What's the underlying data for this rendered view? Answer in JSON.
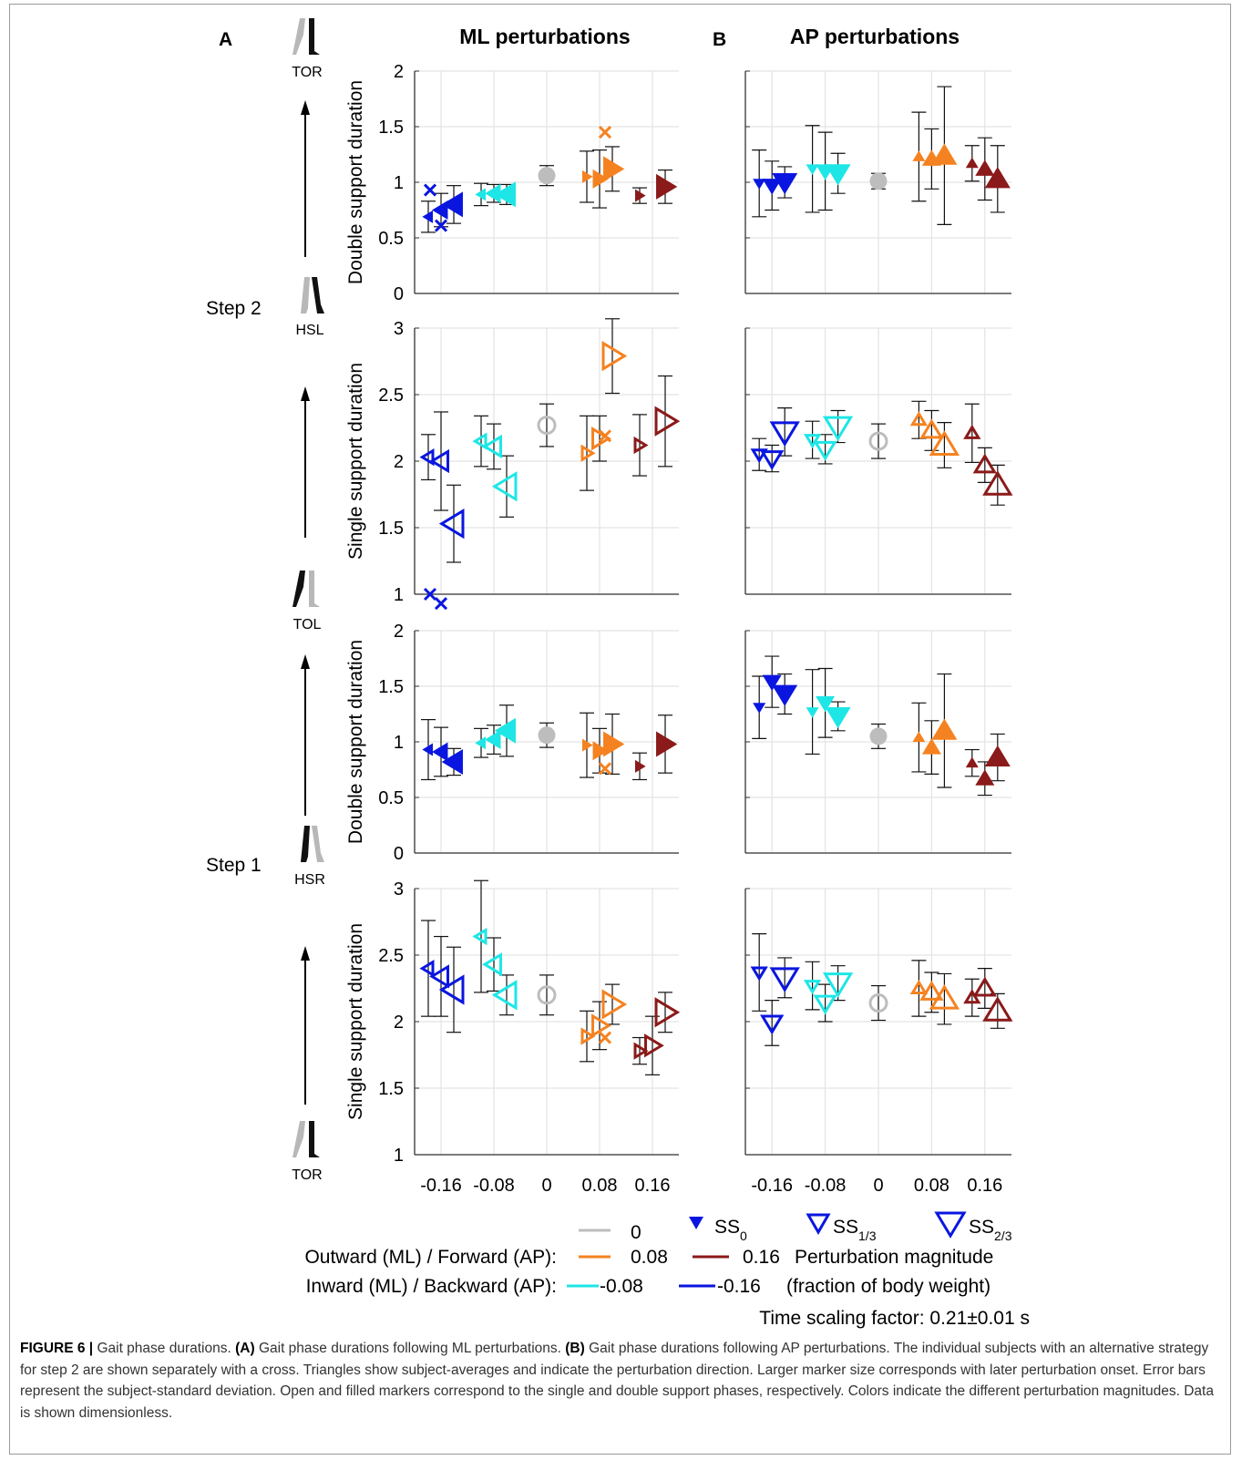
{
  "panels": {
    "A": {
      "letter": "A",
      "title": "ML perturbations"
    },
    "B": {
      "letter": "B",
      "title": "AP perturbations"
    }
  },
  "row_labels": [
    "Double support duration",
    "Single support duration",
    "Double support duration",
    "Single support duration"
  ],
  "events": {
    "tor_top": "TOR",
    "hsl": "HSL",
    "tol": "TOL",
    "hsr": "HSR",
    "tor_bottom": "TOR"
  },
  "steps": {
    "step2": "Step 2",
    "step1": "Step 1"
  },
  "x_ticks": [
    "-0.16",
    "-0.08",
    "0",
    "0.08",
    "0.16"
  ],
  "y_ticks_ds": [
    "0",
    "0.5",
    "1",
    "1.5",
    "2"
  ],
  "y_ticks_ss": [
    "1",
    "1.5",
    "2",
    "2.5",
    "3"
  ],
  "legend": {
    "zero_label": "0",
    "ss0": "SS",
    "ss0_sub": "0",
    "ss13": "SS",
    "ss13_sub": "1/3",
    "ss23": "SS",
    "ss23_sub": "2/3",
    "outward_label": "Outward (ML) / Forward (AP):",
    "inward_label": "Inward (ML) / Backward (AP):",
    "v008": "0.08",
    "v016": "0.16",
    "vm008": "-0.08",
    "vm016": "-0.16",
    "magnitude_line1": "Perturbation magnitude",
    "magnitude_line2": "(fraction of body weight)",
    "time_scaling": "Time scaling factor: 0.21±0.01 s"
  },
  "caption": {
    "fig_label": "FIGURE 6 |",
    "text1": " Gait phase durations. ",
    "a_label": "(A)",
    "text2": " Gait phase durations following ML perturbations. ",
    "b_label": "(B)",
    "text3": " Gait phase durations following AP perturbations. The individual subjects with an alternative strategy for step 2 are shown separately with a cross. Triangles show subject-averages and indicate the perturbation direction. Larger marker size corresponds with later perturbation onset. Error bars represent the subject-standard deviation. Open and filled markers correspond to the single and double support phases, respectively. Colors indicate the different perturbation magnitudes. Data is shown dimensionless."
  },
  "colors": {
    "m016": "#0a16e0",
    "m008": "#1ee6e6",
    "zero": "#bdbdbd",
    "p008": "#f58220",
    "p016": "#8b1a1a"
  },
  "chart_data": [
    {
      "panel": "A",
      "type": "scatter",
      "title": "ML perturbations",
      "ylabel": "Double support duration",
      "ylim": [
        0,
        2
      ],
      "grid": true,
      "marker_direction": {
        "negative": "left",
        "positive": "right"
      },
      "points": [
        {
          "x": -0.16,
          "ss": "0",
          "y": 0.69,
          "err": 0.14
        },
        {
          "x": -0.16,
          "ss": "1/3",
          "y": 0.75,
          "err": 0.15
        },
        {
          "x": -0.16,
          "ss": "2/3",
          "y": 0.8,
          "err": 0.17
        },
        {
          "x": -0.08,
          "ss": "0",
          "y": 0.89,
          "err": 0.1
        },
        {
          "x": -0.08,
          "ss": "1/3",
          "y": 0.9,
          "err": 0.08
        },
        {
          "x": -0.08,
          "ss": "2/3",
          "y": 0.89,
          "err": 0.09
        },
        {
          "x": 0,
          "ss": "0",
          "y": 1.06,
          "err": 0.09
        },
        {
          "x": 0.08,
          "ss": "0",
          "y": 1.05,
          "err": 0.23
        },
        {
          "x": 0.08,
          "ss": "1/3",
          "y": 1.03,
          "err": 0.26
        },
        {
          "x": 0.08,
          "ss": "2/3",
          "y": 1.12,
          "err": 0.2
        },
        {
          "x": 0.16,
          "ss": "0",
          "y": 0.88,
          "err": 0.07
        },
        {
          "x": 0.16,
          "ss": "2/3",
          "y": 0.96,
          "err": 0.15
        }
      ],
      "crosses": [
        {
          "x": -0.16,
          "y": 0.93
        },
        {
          "x": -0.16,
          "y": 0.61
        },
        {
          "x": 0.08,
          "y": 1.45
        }
      ]
    },
    {
      "panel": "B",
      "type": "scatter",
      "title": "AP perturbations",
      "ylabel": "Double support duration",
      "ylim": [
        0,
        2
      ],
      "grid": true,
      "marker_direction": {
        "negative": "down",
        "positive": "up"
      },
      "points": [
        {
          "x": -0.16,
          "ss": "0",
          "y": 0.99,
          "err": 0.3
        },
        {
          "x": -0.16,
          "ss": "1/3",
          "y": 0.97,
          "err": 0.22
        },
        {
          "x": -0.16,
          "ss": "2/3",
          "y": 1.0,
          "err": 0.14
        },
        {
          "x": -0.08,
          "ss": "0",
          "y": 1.12,
          "err": 0.39
        },
        {
          "x": -0.08,
          "ss": "1/3",
          "y": 1.1,
          "err": 0.35
        },
        {
          "x": -0.08,
          "ss": "2/3",
          "y": 1.08,
          "err": 0.18
        },
        {
          "x": 0,
          "ss": "0",
          "y": 1.01,
          "err": 0.07
        },
        {
          "x": 0.08,
          "ss": "0",
          "y": 1.23,
          "err": 0.4
        },
        {
          "x": 0.08,
          "ss": "1/3",
          "y": 1.21,
          "err": 0.27
        },
        {
          "x": 0.08,
          "ss": "2/3",
          "y": 1.24,
          "err": 0.62
        },
        {
          "x": 0.16,
          "ss": "0",
          "y": 1.17,
          "err": 0.16
        },
        {
          "x": 0.16,
          "ss": "1/3",
          "y": 1.12,
          "err": 0.28
        },
        {
          "x": 0.16,
          "ss": "2/3",
          "y": 1.03,
          "err": 0.3
        }
      ],
      "crosses": []
    },
    {
      "panel": "A",
      "type": "scatter",
      "ylabel": "Single support duration",
      "ylim": [
        1,
        3
      ],
      "grid": true,
      "marker_direction": {
        "negative": "left",
        "positive": "right"
      },
      "points": [
        {
          "x": -0.16,
          "ss": "0",
          "y": 2.03,
          "err": 0.17
        },
        {
          "x": -0.16,
          "ss": "1/3",
          "y": 2.0,
          "err": 0.37
        },
        {
          "x": -0.16,
          "ss": "2/3",
          "y": 1.53,
          "err": 0.29
        },
        {
          "x": -0.08,
          "ss": "0",
          "y": 2.15,
          "err": 0.19
        },
        {
          "x": -0.08,
          "ss": "1/3",
          "y": 2.11,
          "err": 0.17
        },
        {
          "x": -0.08,
          "ss": "2/3",
          "y": 1.81,
          "err": 0.23
        },
        {
          "x": 0,
          "ss": "0",
          "y": 2.27,
          "err": 0.16
        },
        {
          "x": 0.08,
          "ss": "0",
          "y": 2.06,
          "err": 0.28
        },
        {
          "x": 0.08,
          "ss": "1/3",
          "y": 2.17,
          "err": 0.17
        },
        {
          "x": 0.08,
          "ss": "2/3",
          "y": 2.79,
          "err": 0.28
        },
        {
          "x": 0.16,
          "ss": "0",
          "y": 2.12,
          "err": 0.23
        },
        {
          "x": 0.16,
          "ss": "2/3",
          "y": 2.3,
          "err": 0.34
        }
      ],
      "crosses": [
        {
          "x": -0.16,
          "y": 1.0
        },
        {
          "x": -0.16,
          "y": 0.93
        },
        {
          "x": 0.08,
          "y": 2.19
        }
      ]
    },
    {
      "panel": "B",
      "type": "scatter",
      "ylabel": "Single support duration",
      "ylim": [
        1,
        3
      ],
      "grid": true,
      "marker_direction": {
        "negative": "down",
        "positive": "up"
      },
      "points": [
        {
          "x": -0.16,
          "ss": "0",
          "y": 2.05,
          "err": 0.12
        },
        {
          "x": -0.16,
          "ss": "1/3",
          "y": 2.02,
          "err": 0.1
        },
        {
          "x": -0.16,
          "ss": "2/3",
          "y": 2.22,
          "err": 0.18
        },
        {
          "x": -0.08,
          "ss": "0",
          "y": 2.16,
          "err": 0.14
        },
        {
          "x": -0.08,
          "ss": "1/3",
          "y": 2.09,
          "err": 0.11
        },
        {
          "x": -0.08,
          "ss": "2/3",
          "y": 2.26,
          "err": 0.12
        },
        {
          "x": 0,
          "ss": "0",
          "y": 2.15,
          "err": 0.13
        },
        {
          "x": 0.08,
          "ss": "0",
          "y": 2.31,
          "err": 0.14
        },
        {
          "x": 0.08,
          "ss": "1/3",
          "y": 2.23,
          "err": 0.15
        },
        {
          "x": 0.08,
          "ss": "2/3",
          "y": 2.12,
          "err": 0.17
        },
        {
          "x": 0.16,
          "ss": "0",
          "y": 2.21,
          "err": 0.22
        },
        {
          "x": 0.16,
          "ss": "1/3",
          "y": 1.97,
          "err": 0.13
        },
        {
          "x": 0.16,
          "ss": "2/3",
          "y": 1.82,
          "err": 0.15
        }
      ],
      "crosses": []
    },
    {
      "panel": "A",
      "type": "scatter",
      "ylabel": "Double support duration",
      "ylim": [
        0,
        2
      ],
      "grid": true,
      "marker_direction": {
        "negative": "left",
        "positive": "right"
      },
      "points": [
        {
          "x": -0.16,
          "ss": "0",
          "y": 0.93,
          "err": 0.27
        },
        {
          "x": -0.16,
          "ss": "1/3",
          "y": 0.91,
          "err": 0.22
        },
        {
          "x": -0.16,
          "ss": "2/3",
          "y": 0.82,
          "err": 0.12
        },
        {
          "x": -0.08,
          "ss": "0",
          "y": 0.99,
          "err": 0.13
        },
        {
          "x": -0.08,
          "ss": "1/3",
          "y": 1.02,
          "err": 0.13
        },
        {
          "x": -0.08,
          "ss": "2/3",
          "y": 1.1,
          "err": 0.23
        },
        {
          "x": 0,
          "ss": "0",
          "y": 1.06,
          "err": 0.11
        },
        {
          "x": 0.08,
          "ss": "0",
          "y": 0.97,
          "err": 0.29
        },
        {
          "x": 0.08,
          "ss": "1/3",
          "y": 0.92,
          "err": 0.2
        },
        {
          "x": 0.08,
          "ss": "2/3",
          "y": 0.98,
          "err": 0.27
        },
        {
          "x": 0.16,
          "ss": "0",
          "y": 0.78,
          "err": 0.12
        },
        {
          "x": 0.16,
          "ss": "2/3",
          "y": 0.98,
          "err": 0.26
        }
      ],
      "crosses": [
        {
          "x": 0.08,
          "y": 0.76
        }
      ]
    },
    {
      "panel": "B",
      "type": "scatter",
      "ylabel": "Double support duration",
      "ylim": [
        0,
        2
      ],
      "grid": true,
      "marker_direction": {
        "negative": "down",
        "positive": "up"
      },
      "points": [
        {
          "x": -0.16,
          "ss": "0",
          "y": 1.31,
          "err": 0.28
        },
        {
          "x": -0.16,
          "ss": "1/3",
          "y": 1.54,
          "err": 0.23
        },
        {
          "x": -0.16,
          "ss": "2/3",
          "y": 1.43,
          "err": 0.18
        },
        {
          "x": -0.08,
          "ss": "0",
          "y": 1.27,
          "err": 0.38
        },
        {
          "x": -0.08,
          "ss": "1/3",
          "y": 1.35,
          "err": 0.31
        },
        {
          "x": -0.08,
          "ss": "2/3",
          "y": 1.23,
          "err": 0.13
        },
        {
          "x": 0,
          "ss": "0",
          "y": 1.05,
          "err": 0.11
        },
        {
          "x": 0.08,
          "ss": "0",
          "y": 1.04,
          "err": 0.31
        },
        {
          "x": 0.08,
          "ss": "1/3",
          "y": 0.95,
          "err": 0.24
        },
        {
          "x": 0.08,
          "ss": "2/3",
          "y": 1.1,
          "err": 0.51
        },
        {
          "x": 0.16,
          "ss": "0",
          "y": 0.81,
          "err": 0.12
        },
        {
          "x": 0.16,
          "ss": "1/3",
          "y": 0.67,
          "err": 0.15
        },
        {
          "x": 0.16,
          "ss": "2/3",
          "y": 0.86,
          "err": 0.21
        }
      ],
      "crosses": []
    },
    {
      "panel": "A",
      "type": "scatter",
      "ylabel": "Single support duration",
      "ylim": [
        1,
        3
      ],
      "grid": true,
      "marker_direction": {
        "negative": "left",
        "positive": "right"
      },
      "points": [
        {
          "x": -0.16,
          "ss": "0",
          "y": 2.4,
          "err": 0.36
        },
        {
          "x": -0.16,
          "ss": "1/3",
          "y": 2.34,
          "err": 0.3
        },
        {
          "x": -0.16,
          "ss": "2/3",
          "y": 2.24,
          "err": 0.32
        },
        {
          "x": -0.08,
          "ss": "0",
          "y": 2.64,
          "err": 0.42
        },
        {
          "x": -0.08,
          "ss": "1/3",
          "y": 2.43,
          "err": 0.2
        },
        {
          "x": -0.08,
          "ss": "2/3",
          "y": 2.2,
          "err": 0.15
        },
        {
          "x": 0,
          "ss": "0",
          "y": 2.2,
          "err": 0.15
        },
        {
          "x": 0.08,
          "ss": "0",
          "y": 1.89,
          "err": 0.19
        },
        {
          "x": 0.08,
          "ss": "1/3",
          "y": 1.97,
          "err": 0.18
        },
        {
          "x": 0.08,
          "ss": "2/3",
          "y": 2.13,
          "err": 0.15
        },
        {
          "x": 0.16,
          "ss": "0",
          "y": 1.78,
          "err": 0.1
        },
        {
          "x": 0.16,
          "ss": "1/3",
          "y": 1.82,
          "err": 0.22
        },
        {
          "x": 0.16,
          "ss": "2/3",
          "y": 2.07,
          "err": 0.15
        }
      ],
      "crosses": [
        {
          "x": 0.08,
          "y": 1.88
        }
      ]
    },
    {
      "panel": "B",
      "type": "scatter",
      "ylabel": "Single support duration",
      "ylim": [
        1,
        3
      ],
      "grid": true,
      "marker_direction": {
        "negative": "down",
        "positive": "up"
      },
      "points": [
        {
          "x": -0.16,
          "ss": "0",
          "y": 2.37,
          "err": 0.29
        },
        {
          "x": -0.16,
          "ss": "1/3",
          "y": 1.99,
          "err": 0.17
        },
        {
          "x": -0.16,
          "ss": "2/3",
          "y": 2.33,
          "err": 0.15
        },
        {
          "x": -0.08,
          "ss": "0",
          "y": 2.27,
          "err": 0.18
        },
        {
          "x": -0.08,
          "ss": "1/3",
          "y": 2.14,
          "err": 0.14
        },
        {
          "x": -0.08,
          "ss": "2/3",
          "y": 2.29,
          "err": 0.13
        },
        {
          "x": 0,
          "ss": "0",
          "y": 2.14,
          "err": 0.13
        },
        {
          "x": 0.08,
          "ss": "0",
          "y": 2.25,
          "err": 0.21
        },
        {
          "x": 0.08,
          "ss": "1/3",
          "y": 2.22,
          "err": 0.15
        },
        {
          "x": 0.08,
          "ss": "2/3",
          "y": 2.17,
          "err": 0.19
        },
        {
          "x": 0.16,
          "ss": "0",
          "y": 2.18,
          "err": 0.14
        },
        {
          "x": 0.16,
          "ss": "1/3",
          "y": 2.25,
          "err": 0.15
        },
        {
          "x": 0.16,
          "ss": "2/3",
          "y": 2.08,
          "err": 0.13
        }
      ],
      "crosses": []
    }
  ]
}
